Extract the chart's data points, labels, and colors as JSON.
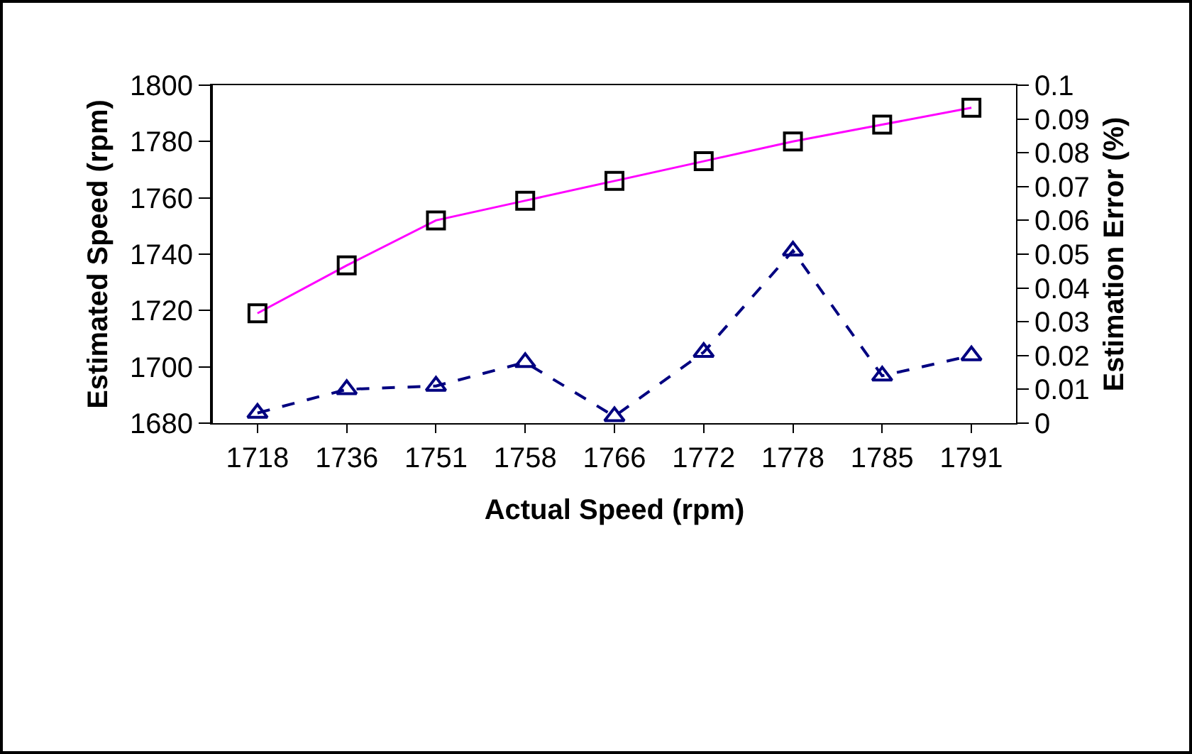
{
  "chart_data": {
    "type": "line",
    "xlabel": "Actual Speed (rpm)",
    "ylabel": "Estimated Speed (rpm)",
    "y2label": "Estimation Error (%)",
    "categories": [
      "1718",
      "1736",
      "1751",
      "1758",
      "1766",
      "1772",
      "1778",
      "1785",
      "1791"
    ],
    "series": [
      {
        "color": "#ff00ff",
        "marker": "square",
        "line_style": "solid",
        "values": [
          1719,
          1736,
          1752,
          1759,
          1766,
          1773,
          1780,
          1786,
          1792
        ]
      },
      {
        "color": "#000080",
        "marker": "triangle",
        "line_style": "dashed",
        "axis": "y2",
        "values": [
          0.003,
          0.01,
          0.011,
          0.018,
          0.002,
          0.021,
          0.051,
          0.014,
          0.02
        ]
      }
    ],
    "ylim": [
      1680,
      1800
    ],
    "yticks": [
      1680,
      1700,
      1720,
      1740,
      1760,
      1780,
      1800
    ],
    "y2lim": [
      0,
      0.1
    ],
    "y2ticks": [
      0,
      0.01,
      0.02,
      0.03,
      0.04,
      0.05,
      0.06,
      0.07,
      0.08,
      0.09,
      0.1
    ],
    "grid": false
  }
}
